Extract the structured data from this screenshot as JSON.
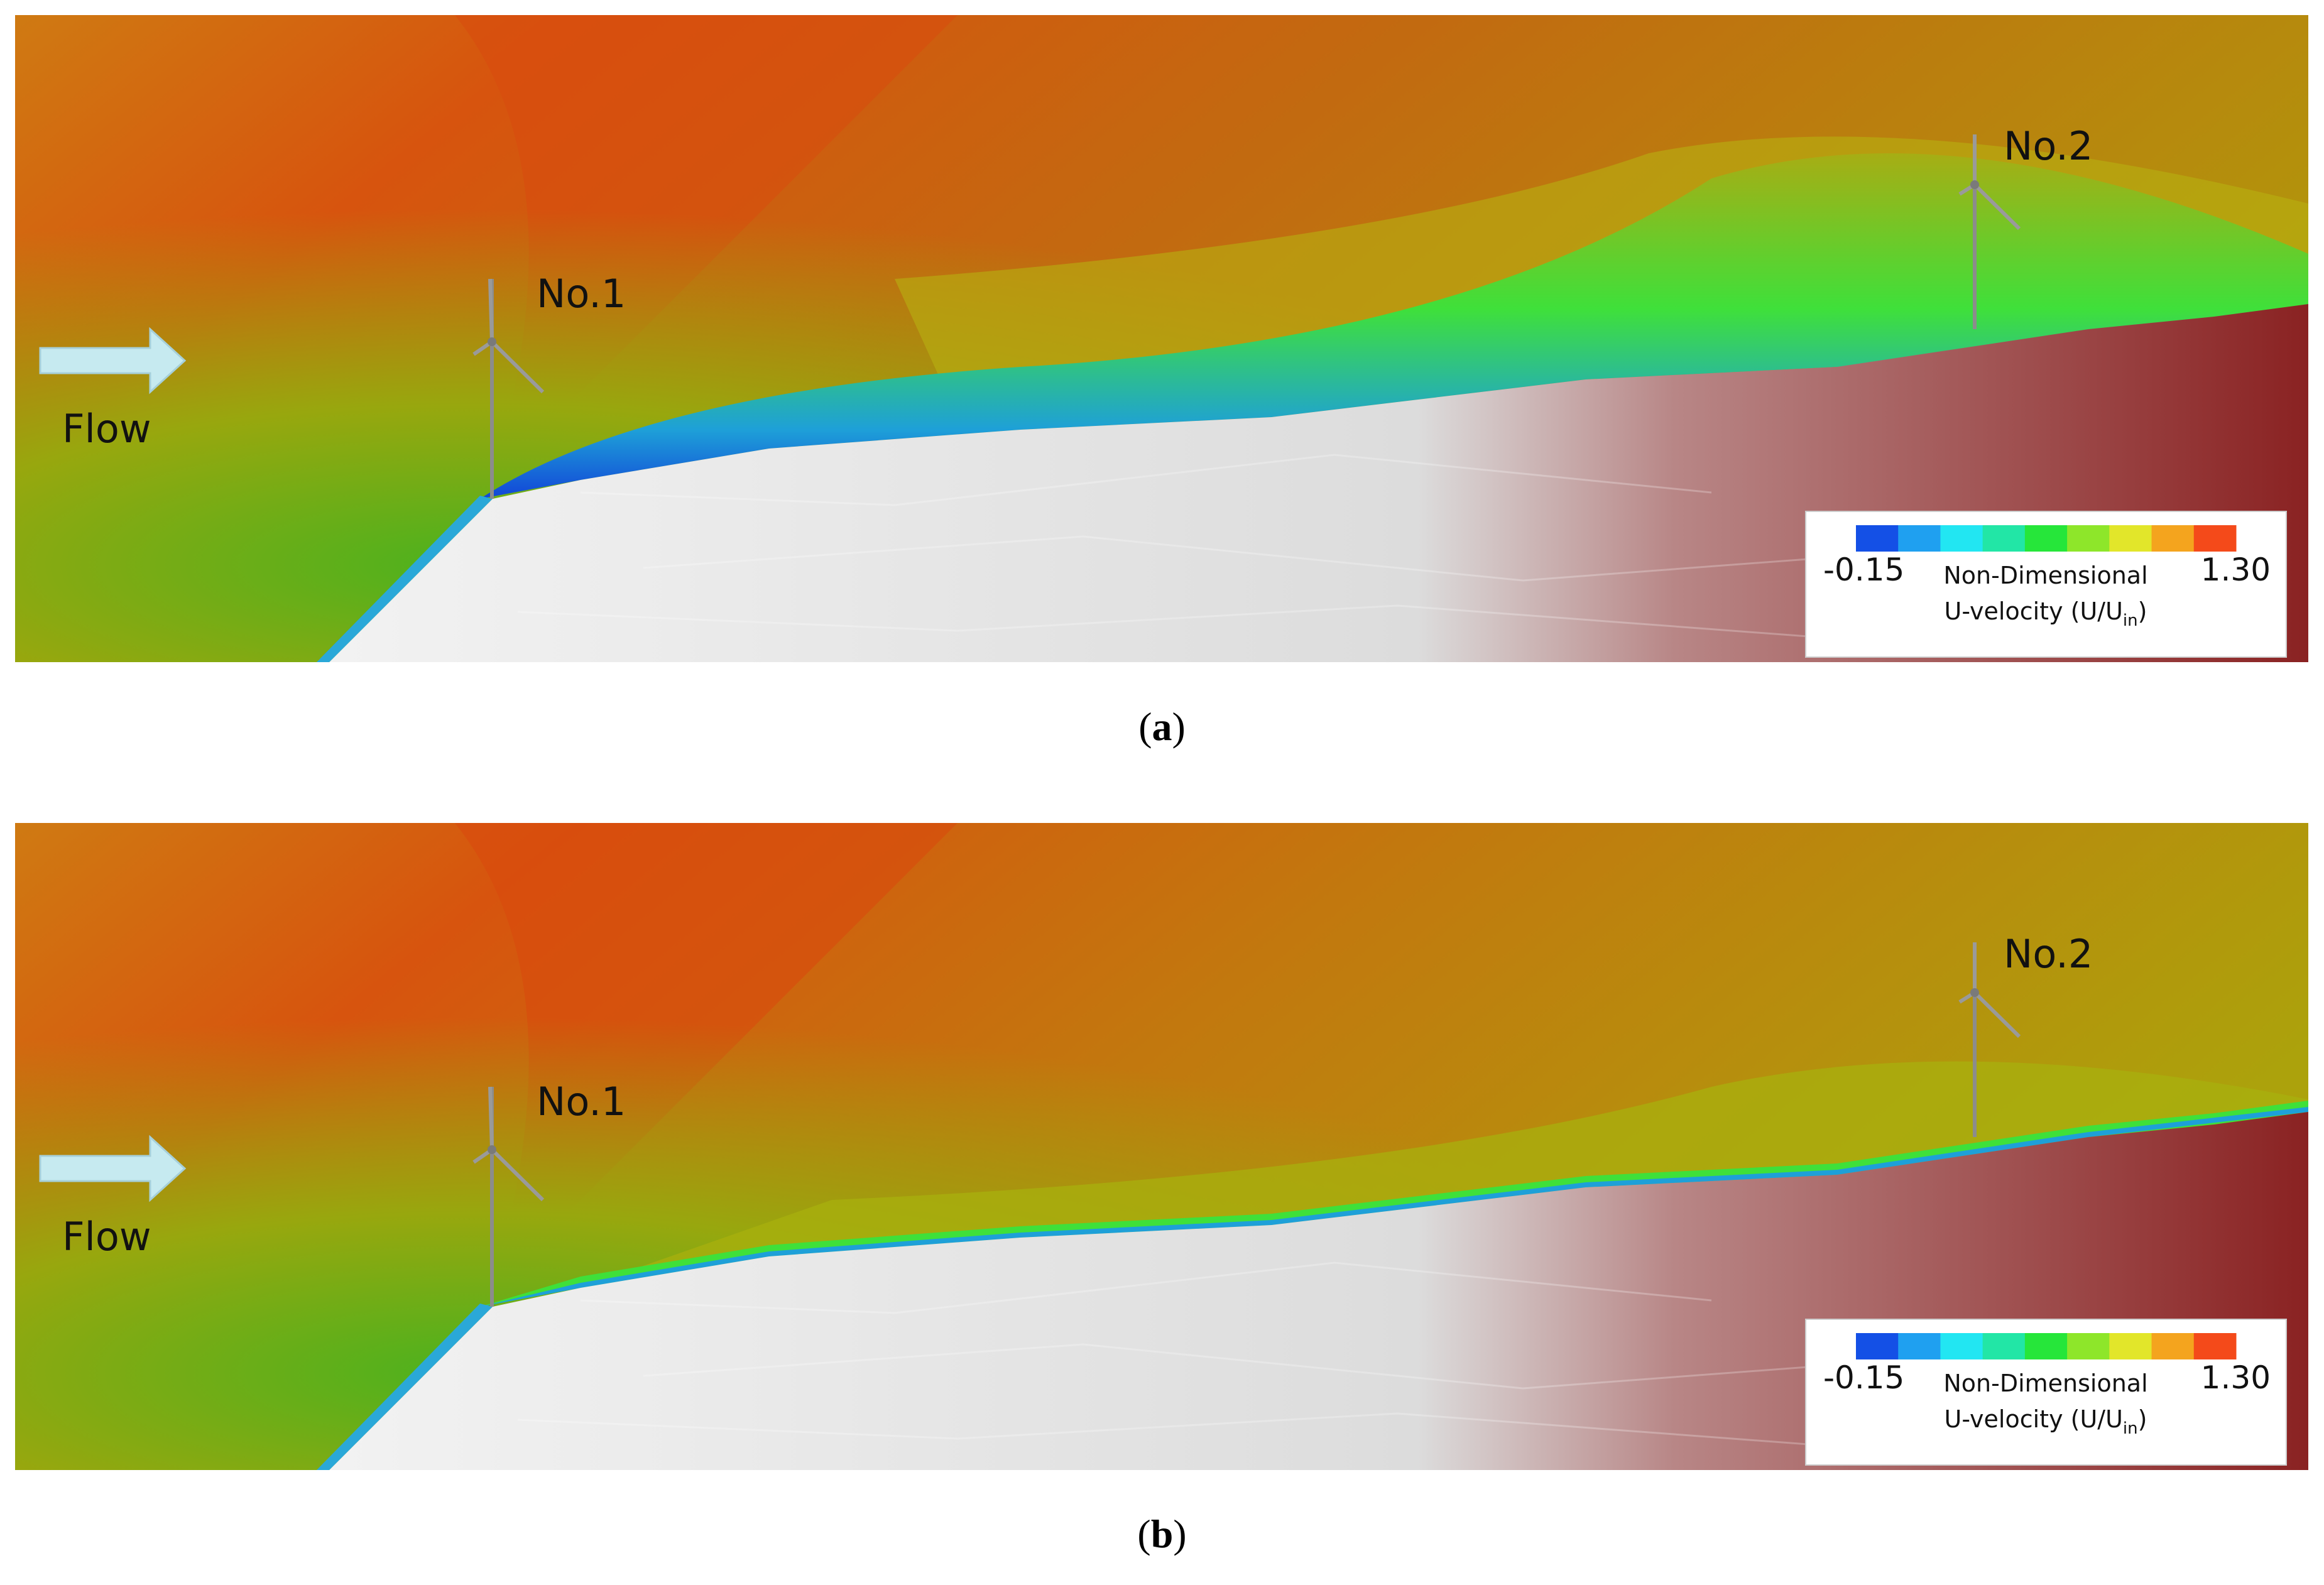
{
  "panels": [
    {
      "id": "a",
      "caption_letter": "a",
      "flow_label": "Flow",
      "turbine_1_label": "No.1",
      "turbine_2_label": "No.2",
      "legend": {
        "min_label": "-0.15",
        "max_label": "1.30",
        "title_line1": "Non-Dimensional",
        "title_line2_prefix": "U-velocity (U/U",
        "title_line2_sub": "in",
        "title_line2_suffix": ")",
        "colors": [
          "#1450e6",
          "#1fa0f0",
          "#22e6f2",
          "#22e6a6",
          "#26e63a",
          "#8ee62a",
          "#e2e62a",
          "#f4a41e",
          "#f44a1a"
        ]
      }
    },
    {
      "id": "b",
      "caption_letter": "b",
      "flow_label": "Flow",
      "turbine_1_label": "No.1",
      "turbine_2_label": "No.2",
      "legend": {
        "min_label": "-0.15",
        "max_label": "1.30",
        "title_line1": "Non-Dimensional",
        "title_line2_prefix": "U-velocity (U/U",
        "title_line2_sub": "in",
        "title_line2_suffix": ")",
        "colors": [
          "#1450e6",
          "#1fa0f0",
          "#22e6f2",
          "#22e6a6",
          "#26e63a",
          "#8ee62a",
          "#e2e62a",
          "#f4a41e",
          "#f44a1a"
        ]
      }
    }
  ]
}
